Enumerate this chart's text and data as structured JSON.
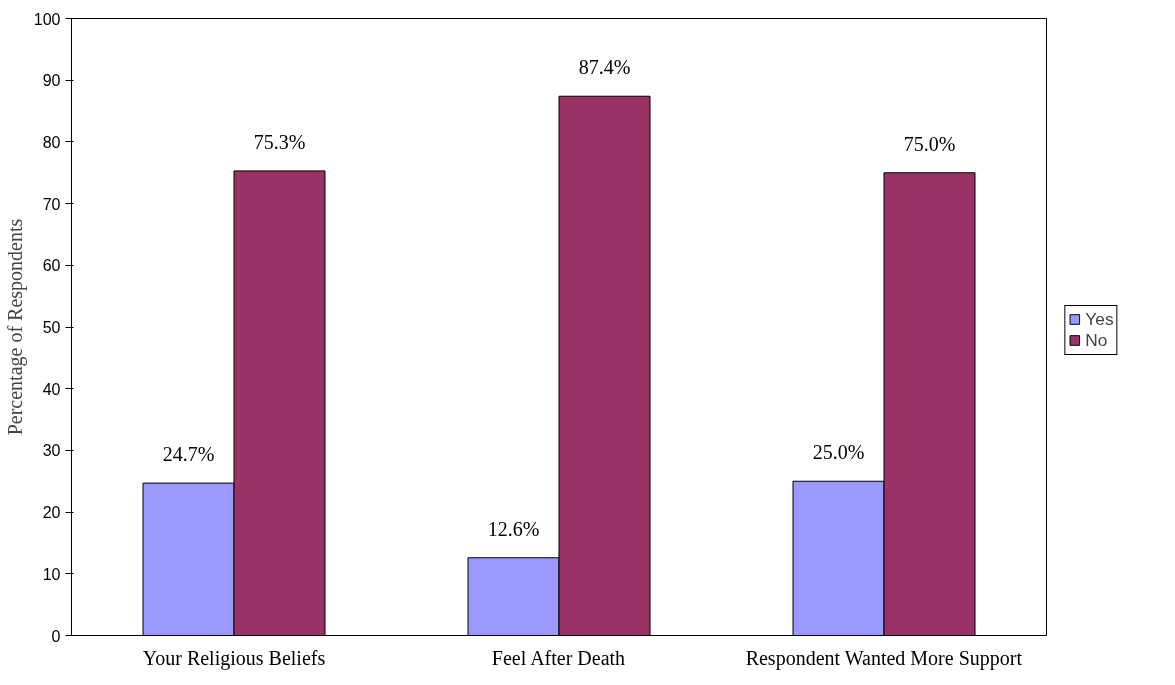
{
  "chart_data": {
    "type": "bar",
    "ylabel": "Percentage of Respondents",
    "categories": [
      "Your Religious Beliefs",
      "Feel After Death",
      "Respondent Wanted More Support"
    ],
    "series": [
      {
        "name": "Yes",
        "color": "#9999ff",
        "values": [
          24.7,
          12.6,
          25.0
        ],
        "value_labels": [
          "24.7%",
          "12.6%",
          "25.0%"
        ]
      },
      {
        "name": "No",
        "color": "#993366",
        "values": [
          75.3,
          87.4,
          75.0
        ],
        "value_labels": [
          "75.3%",
          "87.4%",
          "75.0%"
        ]
      }
    ],
    "ylim": [
      0,
      100
    ],
    "yticks": [
      0,
      10,
      20,
      30,
      40,
      50,
      60,
      70,
      80,
      90,
      100
    ],
    "grid": false,
    "legend": "right"
  }
}
